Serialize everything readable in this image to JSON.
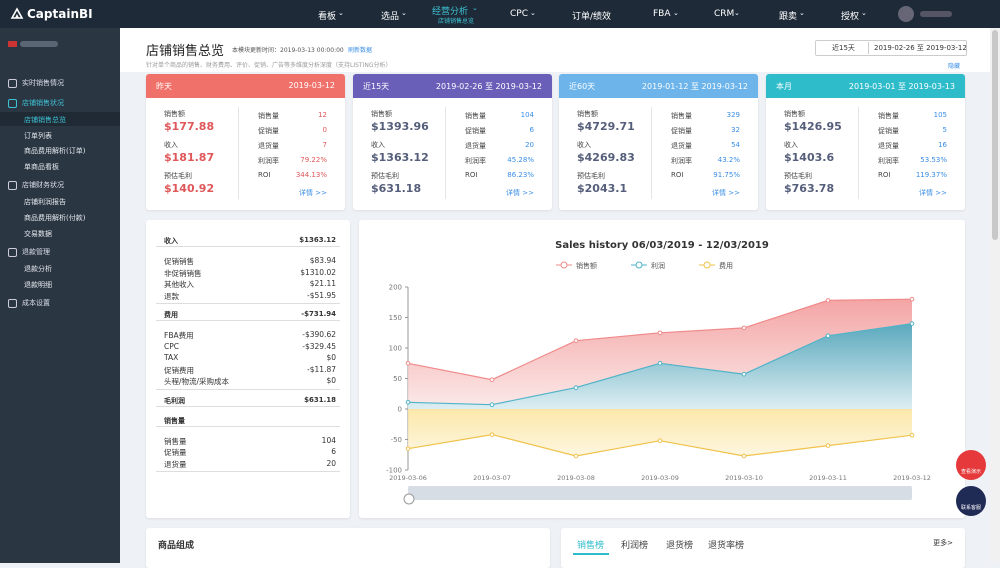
{
  "nav": {
    "logo": "CaptainBI",
    "items": [
      "看板",
      "选品",
      "经营分析",
      "CPC",
      "订单/绩效",
      "FBA",
      "CRM",
      "跟卖",
      "授权"
    ],
    "active_sub": "店铺销售总览"
  },
  "sidebar": [
    {
      "label": "实时销售情况",
      "items": []
    },
    {
      "label": "店铺销售状况",
      "items": [
        "店铺销售总览",
        "订单列表",
        "商品费用解析(订单)",
        "单商品看板"
      ]
    },
    {
      "label": "店铺财务状况",
      "items": [
        "店铺利润报告",
        "商品费用解析(付款)",
        "交易数据"
      ]
    },
    {
      "label": "退款管理",
      "items": [
        "退款分析",
        "退款明细"
      ]
    },
    {
      "label": "成本设置",
      "items": []
    }
  ],
  "header": {
    "title": "店铺销售总览",
    "update": "本模块更新时间：2019-03-13 00:00:00",
    "refresh": "刷新数据",
    "desc": "针对单个商品的销售、财务费用、评价、促销、广告等多维度分析深度（支持LISTING分析）",
    "range": "近15天",
    "dates": "2019-02-26 至 2019-03-12",
    "hide": "隐藏"
  },
  "cards": [
    {
      "period": "昨天",
      "date": "2019-03-12",
      "color": "#f0706a",
      "left": [
        {
          "label": "销售额",
          "value": "$177.88"
        },
        {
          "label": "收入",
          "value": "$181.87"
        },
        {
          "label": "预估毛利",
          "value": "$140.92"
        }
      ],
      "right": [
        {
          "label": "销售量",
          "value": "12"
        },
        {
          "label": "促销量",
          "value": "0"
        },
        {
          "label": "退货量",
          "value": "7"
        },
        {
          "label": "利润率",
          "value": "79.22%"
        },
        {
          "label": "ROI",
          "value": "344.13%"
        }
      ],
      "link": "详情 >>"
    },
    {
      "period": "近15天",
      "date": "2019-02-26 至 2019-03-12",
      "color": "#6a5fb8",
      "left": [
        {
          "label": "销售额",
          "value": "$1393.96"
        },
        {
          "label": "收入",
          "value": "$1363.12"
        },
        {
          "label": "预估毛利",
          "value": "$631.18"
        }
      ],
      "right": [
        {
          "label": "销售量",
          "value": "104"
        },
        {
          "label": "促销量",
          "value": "6"
        },
        {
          "label": "退货量",
          "value": "20"
        },
        {
          "label": "利润率",
          "value": "45.28%"
        },
        {
          "label": "ROI",
          "value": "86.23%"
        }
      ],
      "link": "详情 >>"
    },
    {
      "period": "近60天",
      "date": "2019-01-12 至 2019-03-12",
      "color": "#6cb4ea",
      "left": [
        {
          "label": "销售额",
          "value": "$4729.71"
        },
        {
          "label": "收入",
          "value": "$4269.83"
        },
        {
          "label": "预估毛利",
          "value": "$2043.1"
        }
      ],
      "right": [
        {
          "label": "销售量",
          "value": "329"
        },
        {
          "label": "促销量",
          "value": "32"
        },
        {
          "label": "退货量",
          "value": "54"
        },
        {
          "label": "利润率",
          "value": "43.2%"
        },
        {
          "label": "ROI",
          "value": "91.75%"
        }
      ],
      "link": "详情 >>"
    },
    {
      "period": "本月",
      "date": "2019-03-01 至 2019-03-13",
      "color": "#2ebccb",
      "left": [
        {
          "label": "销售额",
          "value": "$1426.95"
        },
        {
          "label": "收入",
          "value": "$1403.6"
        },
        {
          "label": "预估毛利",
          "value": "$763.78"
        }
      ],
      "right": [
        {
          "label": "销售量",
          "value": "105"
        },
        {
          "label": "促销量",
          "value": "5"
        },
        {
          "label": "退货量",
          "value": "16"
        },
        {
          "label": "利润率",
          "value": "53.53%"
        },
        {
          "label": "ROI",
          "value": "119.37%"
        }
      ],
      "link": "详情 >>"
    }
  ],
  "summary": [
    {
      "label": "收入",
      "value": "$1363.12",
      "rows": [
        {
          "label": "促销销售",
          "value": "$83.94"
        },
        {
          "label": "非促销销售",
          "value": "$1310.02"
        },
        {
          "label": "其他收入",
          "value": "$21.11"
        },
        {
          "label": "退款",
          "value": "-$51.95"
        }
      ]
    },
    {
      "label": "费用",
      "value": "-$731.94",
      "rows": [
        {
          "label": "FBA费用",
          "value": "-$390.62"
        },
        {
          "label": "CPC",
          "value": "-$329.45"
        },
        {
          "label": "TAX",
          "value": "$0"
        },
        {
          "label": "促销费用",
          "value": "-$11.87"
        },
        {
          "label": "头程/物流/采购成本",
          "value": "$0"
        }
      ]
    },
    {
      "label": "毛利润",
      "value": "$631.18",
      "rows": []
    },
    {
      "label": "销售量",
      "rows": [
        {
          "label": "销售量",
          "value": "104"
        },
        {
          "label": "促销量",
          "value": "6"
        },
        {
          "label": "退货量",
          "value": "20"
        }
      ]
    }
  ],
  "chart_data": {
    "type": "area",
    "title": "Sales history 06/03/2019 - 12/03/2019",
    "categories": [
      "2019-03-06",
      "2019-03-07",
      "2019-03-08",
      "2019-03-09",
      "2019-03-10",
      "2019-03-11",
      "2019-03-12"
    ],
    "series": [
      {
        "name": "销售额",
        "color": "#f08a8a",
        "values": [
          75,
          48,
          112,
          125,
          133,
          178,
          180
        ]
      },
      {
        "name": "利润",
        "color": "#4fb3c8",
        "values": [
          11,
          7,
          35,
          75,
          57,
          120,
          140
        ]
      },
      {
        "name": "费用",
        "color": "#f0c24b",
        "values": [
          -65,
          -42,
          -77,
          -52,
          -77,
          -60,
          -43
        ]
      }
    ],
    "ylim": [
      -100,
      200
    ],
    "yticks": [
      -100,
      -50,
      0,
      50,
      100,
      150,
      200
    ],
    "grid": false
  },
  "bottom": {
    "left_title": "商品组成",
    "tabs": [
      "销售榜",
      "利润榜",
      "退货榜",
      "退货率榜"
    ],
    "more": "更多>"
  },
  "float": {
    "demo": "查看演示",
    "service": "联系客服"
  }
}
